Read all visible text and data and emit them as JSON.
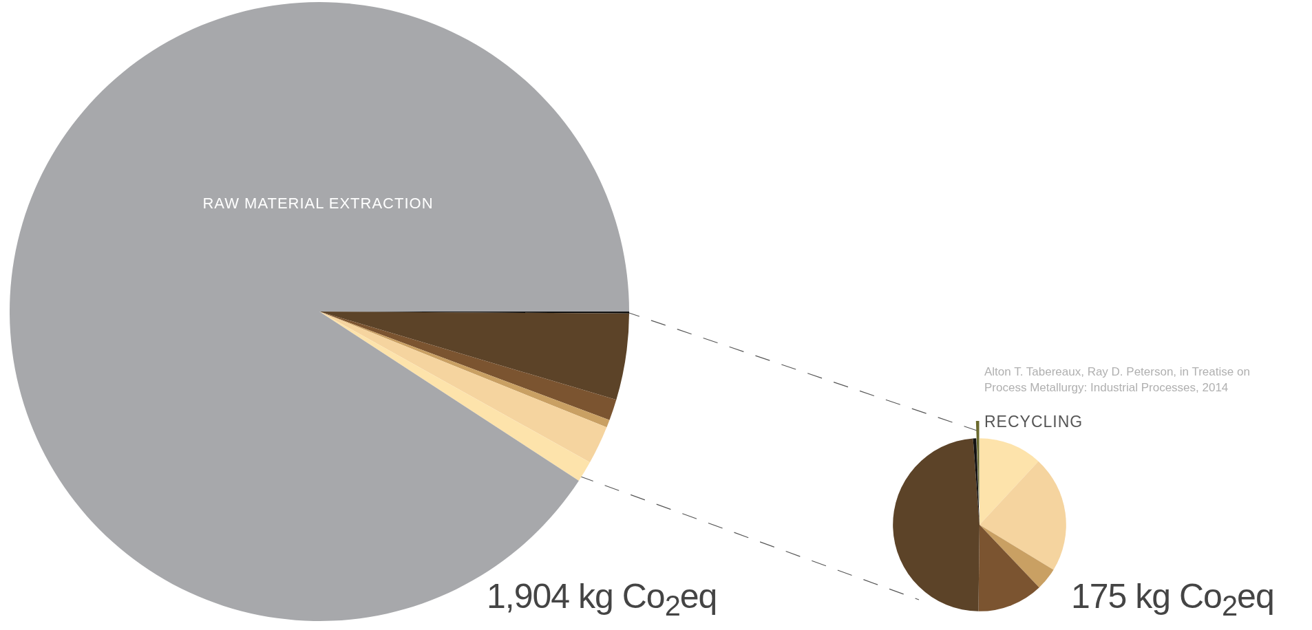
{
  "chart_data": [
    {
      "type": "pie",
      "categories": [
        null,
        null,
        null,
        null,
        null,
        null,
        "RAW MATERIAL EXTRACTION"
      ],
      "values": [
        0.1,
        4.5,
        1.1,
        0.4,
        2.0,
        1.1,
        90.8
      ],
      "colors": [
        "#111111",
        "#5c4328",
        "#7b5430",
        "#c9a063",
        "#f5d49f",
        "#fde3ab",
        "#a7a8ab"
      ],
      "legend": false,
      "annotations": [
        "1,904 kg Co$_{2}$eq"
      ]
    },
    {
      "type": "pie",
      "categories": [
        null,
        null,
        null,
        null,
        null,
        null,
        "RECYCLING"
      ],
      "values": [
        11.9,
        21.8,
        4.2,
        12.3,
        48.6,
        0.6,
        0.6
      ],
      "colors": [
        "#fde3ab",
        "#f5d49f",
        "#c9a063",
        "#7b5430",
        "#5c4328",
        "#111111",
        "#6b6a2e"
      ],
      "legend": false,
      "annotations": [
        "175 kg Co$_{2}$eq",
        "Alton T. Tabereaux, Ray D. Peterson, in Treatise on Process Metallurgy: Industrial Processes, 2014"
      ]
    }
  ]
}
